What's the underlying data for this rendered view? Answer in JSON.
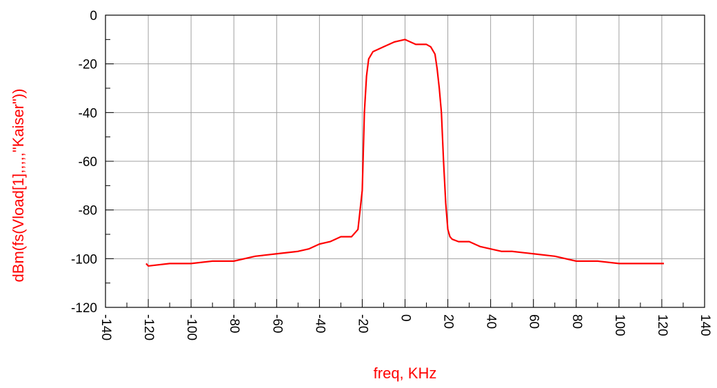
{
  "chart_data": {
    "type": "line",
    "xlabel": "freq, KHz",
    "ylabel": "dBm(fs(Vload[1],,,,,\"Kaiser\"))",
    "xlim": [
      -140,
      140
    ],
    "ylim": [
      -120,
      0
    ],
    "x_ticks": [
      -140,
      -120,
      -100,
      -80,
      -60,
      -40,
      -20,
      0,
      20,
      40,
      60,
      80,
      100,
      120,
      140
    ],
    "y_ticks": [
      0,
      -20,
      -40,
      -60,
      -80,
      -100,
      -120
    ],
    "x_tick_labels": [
      "-140",
      "-120",
      "-100",
      "-80",
      "-60",
      "-40",
      "-20",
      "0",
      "20",
      "40",
      "60",
      "80",
      "100",
      "120",
      "140"
    ],
    "y_tick_labels": [
      "0",
      "-20",
      "-40",
      "-60",
      "-80",
      "-100",
      "-120"
    ],
    "grid": true,
    "colors": {
      "series": "#ff0000",
      "axis_text": "#ff0000",
      "grid": "#a0a0a0",
      "frame": "#000000"
    },
    "series": [
      {
        "x": [
          -121,
          -120,
          -110,
          -100,
          -90,
          -80,
          -70,
          -60,
          -50,
          -45,
          -40,
          -35,
          -30,
          -25,
          -22,
          -20,
          -19,
          -18,
          -17,
          -15,
          -10,
          -5,
          0,
          5,
          10,
          12,
          14,
          15,
          16,
          17,
          18,
          19,
          20,
          21,
          22,
          25,
          30,
          35,
          40,
          45,
          50,
          60,
          70,
          80,
          90,
          100,
          110,
          120,
          121
        ],
        "y": [
          -102,
          -103,
          -102,
          -102,
          -101,
          -101,
          -99,
          -98,
          -97,
          -96,
          -94,
          -93,
          -91,
          -91,
          -88,
          -72,
          -40,
          -25,
          -18,
          -15,
          -13,
          -11,
          -10,
          -12,
          -12,
          -13,
          -16,
          -22,
          -30,
          -40,
          -60,
          -77,
          -88,
          -91,
          -92,
          -93,
          -93,
          -95,
          -96,
          -97,
          -97,
          -98,
          -99,
          -101,
          -101,
          -102,
          -102,
          -102,
          -102
        ]
      }
    ]
  }
}
